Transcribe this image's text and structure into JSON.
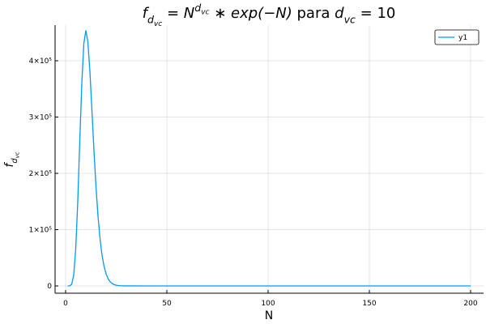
{
  "chart_data": {
    "type": "line",
    "title_parts": [
      {
        "text": "f",
        "pos": "base",
        "italic": true
      },
      {
        "text": "d",
        "pos": "sub",
        "italic": true
      },
      {
        "text": "vc",
        "pos": "subsub",
        "italic": true
      },
      {
        "text": " = N",
        "pos": "base",
        "italic": true
      },
      {
        "text": "d",
        "pos": "sup",
        "italic": true
      },
      {
        "text": "vc",
        "pos": "supsub",
        "italic": true
      },
      {
        "text": " ∗ exp(−N)",
        "pos": "base",
        "italic": true
      },
      {
        "text": " para ",
        "pos": "base",
        "italic": false
      },
      {
        "text": "d",
        "pos": "base",
        "italic": true
      },
      {
        "text": "vc",
        "pos": "sub",
        "italic": true
      },
      {
        "text": " = 10",
        "pos": "base",
        "italic": false
      }
    ],
    "ylabel_parts": [
      {
        "text": "f",
        "pos": "base",
        "italic": true
      },
      {
        "text": "d",
        "pos": "sub",
        "italic": true
      },
      {
        "text": "vc",
        "pos": "subsub",
        "italic": true
      }
    ],
    "xlabel": "N",
    "x": [
      1,
      2,
      3,
      4,
      5,
      6,
      7,
      8,
      9,
      10,
      11,
      12,
      13,
      14,
      15,
      16,
      17,
      18,
      19,
      20,
      21,
      22,
      23,
      24,
      25,
      26,
      27,
      28,
      29,
      30,
      40,
      50,
      100,
      150,
      200
    ],
    "series": [
      {
        "name": "y1",
        "color": "#009af9",
        "values": [
          0.368,
          138.6,
          2940,
          19206,
          65800,
          149883,
          257584,
          360200,
          430310,
          453999,
          433198,
          380434,
          311606,
          240526,
          176399,
          123734,
          83461,
          54379,
          34351,
          21106,
          12648,
          7409,
          4251,
          2394,
          1324,
          721,
          387,
          205,
          107,
          55,
          0.45,
          0,
          0,
          0,
          0
        ]
      }
    ],
    "xlim": [
      -5.2,
      206.4
    ],
    "ylim": [
      -12950,
      463300
    ],
    "xticks": [
      0,
      50,
      100,
      150,
      200
    ],
    "yticks": [
      0,
      {
        "value": 100000,
        "label": "1×10⁵"
      },
      {
        "value": 200000,
        "label": "2×10⁵"
      },
      {
        "value": 300000,
        "label": "3×10⁵"
      },
      {
        "value": 400000,
        "label": "4×10⁵"
      }
    ],
    "grid": true,
    "legend": "top-right"
  }
}
